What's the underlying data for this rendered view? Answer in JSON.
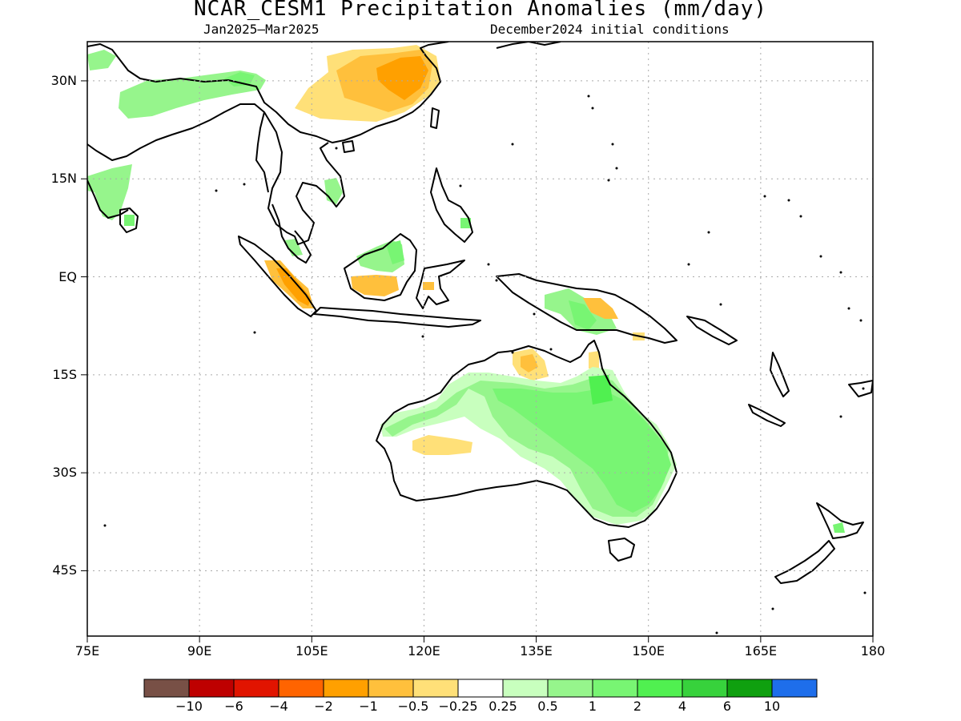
{
  "title": "NCAR_CESM1 Precipitation Anomalies (mm/day)",
  "subtitle_left": "Jan2025–Mar2025",
  "subtitle_right": "December2024 initial conditions",
  "map": {
    "lon_range": [
      75,
      180
    ],
    "lat_range": [
      -55,
      36
    ],
    "y_ticks": [
      {
        "lat": 30,
        "label": "30N"
      },
      {
        "lat": 15,
        "label": "15N"
      },
      {
        "lat": 0,
        "label": "EQ"
      },
      {
        "lat": -15,
        "label": "15S"
      },
      {
        "lat": -30,
        "label": "30S"
      },
      {
        "lat": -45,
        "label": "45S"
      }
    ],
    "x_ticks": [
      {
        "lon": 75,
        "label": "75E"
      },
      {
        "lon": 90,
        "label": "90E"
      },
      {
        "lon": 105,
        "label": "105E"
      },
      {
        "lon": 120,
        "label": "120E"
      },
      {
        "lon": 135,
        "label": "135E"
      },
      {
        "lon": 150,
        "label": "150E"
      },
      {
        "lon": 165,
        "label": "165E"
      },
      {
        "lon": 180,
        "label": "180"
      }
    ],
    "gridlines": "dotted",
    "colors": {
      "dry_1": "#ffe078",
      "dry_2": "#ffc03c",
      "dry_3": "#ffa000",
      "wet_1": "#c8ffbe",
      "wet_2": "#96f58c",
      "wet_3": "#78f573",
      "wet_4": "#50f050",
      "coast": "#000000"
    }
  },
  "colorbar": {
    "colors": [
      "#785046",
      "#be0000",
      "#e11400",
      "#ff6400",
      "#ffa000",
      "#ffc03c",
      "#ffe078",
      "#ffffff",
      "#c8ffbe",
      "#96f58c",
      "#78f573",
      "#50f050",
      "#37d23c",
      "#0fa00f",
      "#1e6eeb"
    ],
    "labels": [
      "−10",
      "−6",
      "−4",
      "−2",
      "−1",
      "−0.5",
      "−0.25",
      "0.25",
      "0.5",
      "1",
      "2",
      "4",
      "6",
      "10"
    ]
  }
}
